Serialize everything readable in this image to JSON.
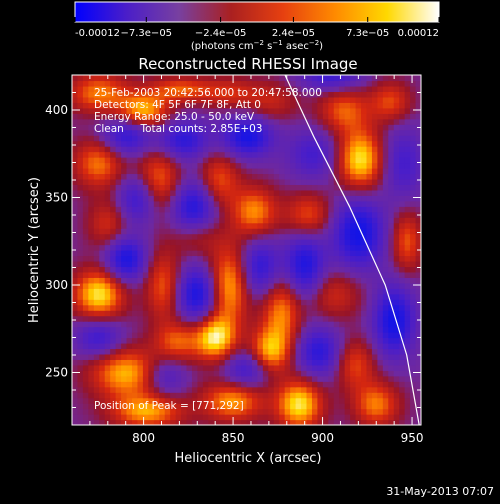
{
  "chart_data": {
    "type": "heatmap",
    "title": "Reconstructed RHESSI Image",
    "xlabel": "Heliocentric X (arcsec)",
    "ylabel": "Heliocentric Y (arcsec)",
    "xlim": [
      760,
      955
    ],
    "ylim": [
      220,
      420
    ],
    "x_ticks": [
      800,
      850,
      900,
      950
    ],
    "y_ticks": [
      250,
      300,
      350,
      400
    ],
    "colorbar": {
      "range": [
        -0.00012,
        0.00012
      ],
      "tick_values": [
        -0.00012,
        -7.3e-05,
        -2.4e-05,
        2.4e-05,
        7.3e-05,
        0.00012
      ],
      "tick_labels": [
        "-0.00012",
        "−7.3e−05",
        "−2.4e−05",
        "2.4e−05",
        "7.3e−05",
        "0.00012"
      ],
      "unit_line1": "(photons cm",
      "unit_exp1": "−2",
      "unit_mid": " s",
      "unit_exp2": "−1",
      "unit_mid2": " asec",
      "unit_exp3": "−2",
      "unit_end": ")",
      "colors": [
        "#0000ff",
        "#4b1ec8",
        "#7840a0",
        "#aa2020",
        "#e64010",
        "#ff8a00",
        "#ffd800",
        "#ffffff"
      ]
    },
    "annotations": [
      "25-Feb-2003 20:42:56.000 to 20:47:58.000",
      "Detectors: 4F 5F 6F 7F 8F, Att 0",
      "Energy Range: 25.0 - 50.0 keV",
      "Clean     Total counts: 2.85E+03"
    ],
    "peak_label": "Position of Peak = [771,292]",
    "limb_line": [
      [
        879,
        420
      ],
      [
        895,
        385
      ],
      [
        915,
        345
      ],
      [
        935,
        300
      ],
      [
        947,
        260
      ],
      [
        954,
        220
      ]
    ],
    "blobs": [
      {
        "x": 775,
        "y": 410,
        "v": 0.7,
        "sx": 12,
        "sy": 8
      },
      {
        "x": 800,
        "y": 400,
        "v": 0.85,
        "sx": 10,
        "sy": 7
      },
      {
        "x": 820,
        "y": 412,
        "v": 0.6,
        "sx": 12,
        "sy": 5
      },
      {
        "x": 848,
        "y": 410,
        "v": 0.45,
        "sx": 12,
        "sy": 6
      },
      {
        "x": 872,
        "y": 405,
        "v": 0.35,
        "sx": 10,
        "sy": 8
      },
      {
        "x": 912,
        "y": 400,
        "v": 0.6,
        "sx": 10,
        "sy": 9
      },
      {
        "x": 921,
        "y": 372,
        "v": 1.0,
        "sx": 9,
        "sy": 12
      },
      {
        "x": 938,
        "y": 405,
        "v": 0.55,
        "sx": 8,
        "sy": 8
      },
      {
        "x": 775,
        "y": 370,
        "v": 0.7,
        "sx": 10,
        "sy": 10
      },
      {
        "x": 808,
        "y": 360,
        "v": 0.7,
        "sx": 9,
        "sy": 13
      },
      {
        "x": 842,
        "y": 360,
        "v": 0.6,
        "sx": 8,
        "sy": 11
      },
      {
        "x": 862,
        "y": 342,
        "v": 0.75,
        "sx": 9,
        "sy": 10
      },
      {
        "x": 892,
        "y": 340,
        "v": 0.6,
        "sx": 9,
        "sy": 9
      },
      {
        "x": 780,
        "y": 335,
        "v": 0.45,
        "sx": 8,
        "sy": 10
      },
      {
        "x": 830,
        "y": 328,
        "v": 0.35,
        "sx": 10,
        "sy": 8
      },
      {
        "x": 775,
        "y": 295,
        "v": 1.0,
        "sx": 10,
        "sy": 10
      },
      {
        "x": 811,
        "y": 300,
        "v": 0.6,
        "sx": 7,
        "sy": 14
      },
      {
        "x": 848,
        "y": 300,
        "v": 0.85,
        "sx": 8,
        "sy": 16
      },
      {
        "x": 877,
        "y": 285,
        "v": 0.75,
        "sx": 8,
        "sy": 15
      },
      {
        "x": 905,
        "y": 295,
        "v": 0.45,
        "sx": 12,
        "sy": 10
      },
      {
        "x": 790,
        "y": 250,
        "v": 0.85,
        "sx": 14,
        "sy": 10
      },
      {
        "x": 819,
        "y": 268,
        "v": 0.6,
        "sx": 9,
        "sy": 8
      },
      {
        "x": 840,
        "y": 270,
        "v": 1.0,
        "sx": 8,
        "sy": 9
      },
      {
        "x": 870,
        "y": 262,
        "v": 0.8,
        "sx": 8,
        "sy": 9
      },
      {
        "x": 887,
        "y": 232,
        "v": 1.0,
        "sx": 9,
        "sy": 10
      },
      {
        "x": 850,
        "y": 234,
        "v": 0.8,
        "sx": 12,
        "sy": 8
      },
      {
        "x": 802,
        "y": 228,
        "v": 0.8,
        "sx": 14,
        "sy": 7
      },
      {
        "x": 918,
        "y": 255,
        "v": 0.55,
        "sx": 8,
        "sy": 10
      },
      {
        "x": 930,
        "y": 232,
        "v": 0.7,
        "sx": 9,
        "sy": 9
      },
      {
        "x": 947,
        "y": 325,
        "v": 0.6,
        "sx": 6,
        "sy": 12
      },
      {
        "x": 790,
        "y": 385,
        "v": -0.7,
        "sx": 10,
        "sy": 8
      },
      {
        "x": 822,
        "y": 383,
        "v": -0.7,
        "sx": 10,
        "sy": 8
      },
      {
        "x": 858,
        "y": 385,
        "v": -0.85,
        "sx": 10,
        "sy": 8
      },
      {
        "x": 895,
        "y": 375,
        "v": -0.5,
        "sx": 10,
        "sy": 10
      },
      {
        "x": 790,
        "y": 315,
        "v": -0.85,
        "sx": 8,
        "sy": 9
      },
      {
        "x": 797,
        "y": 350,
        "v": -0.7,
        "sx": 8,
        "sy": 10
      },
      {
        "x": 828,
        "y": 345,
        "v": -0.8,
        "sx": 9,
        "sy": 11
      },
      {
        "x": 830,
        "y": 295,
        "v": -0.85,
        "sx": 8,
        "sy": 11
      },
      {
        "x": 865,
        "y": 310,
        "v": -0.7,
        "sx": 8,
        "sy": 12
      },
      {
        "x": 890,
        "y": 310,
        "v": -0.85,
        "sx": 8,
        "sy": 14
      },
      {
        "x": 920,
        "y": 330,
        "v": -0.9,
        "sx": 10,
        "sy": 14
      },
      {
        "x": 940,
        "y": 280,
        "v": -0.9,
        "sx": 8,
        "sy": 14
      },
      {
        "x": 775,
        "y": 270,
        "v": -0.6,
        "sx": 9,
        "sy": 8
      },
      {
        "x": 812,
        "y": 248,
        "v": -0.5,
        "sx": 8,
        "sy": 8
      },
      {
        "x": 858,
        "y": 252,
        "v": -0.6,
        "sx": 9,
        "sy": 8
      },
      {
        "x": 898,
        "y": 262,
        "v": -0.7,
        "sx": 9,
        "sy": 10
      },
      {
        "x": 905,
        "y": 420,
        "v": -0.6,
        "sx": 12,
        "sy": 6
      },
      {
        "x": 945,
        "y": 370,
        "v": -0.5,
        "sx": 8,
        "sy": 14
      }
    ]
  },
  "footer_date": "31-May-2013 07:07"
}
